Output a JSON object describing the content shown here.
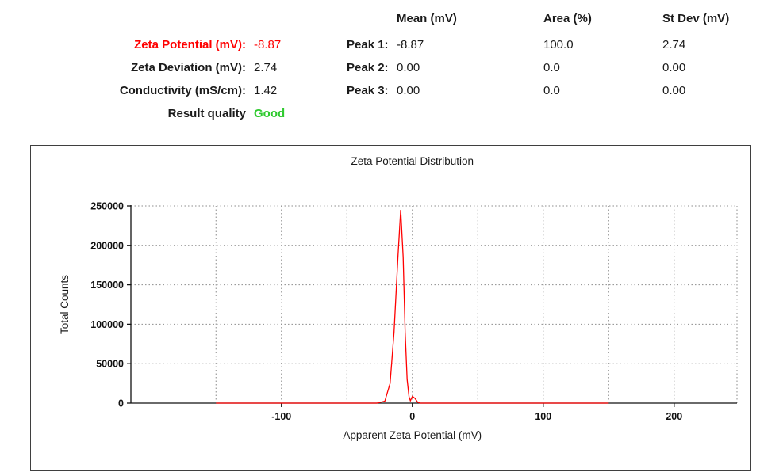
{
  "summary": {
    "rows": [
      {
        "label": "Zeta Potential (mV):",
        "value": "-8.87"
      },
      {
        "label": "Zeta Deviation (mV):",
        "value": "2.74"
      },
      {
        "label": "Conductivity (mS/cm):",
        "value": "1.42"
      },
      {
        "label": "Result quality",
        "value": "Good"
      }
    ],
    "colors": {
      "highlight": "#ff0000",
      "good": "#2fca2f"
    }
  },
  "peaks": {
    "headers": [
      "Mean (mV)",
      "Area (%)",
      "St Dev (mV)"
    ],
    "rows": [
      {
        "label": "Peak 1:",
        "mean": "-8.87",
        "area": "100.0",
        "stdev": "2.74"
      },
      {
        "label": "Peak 2:",
        "mean": "0.00",
        "area": "0.0",
        "stdev": "0.00"
      },
      {
        "label": "Peak 3:",
        "mean": "0.00",
        "area": "0.0",
        "stdev": "0.00"
      }
    ]
  },
  "chart_data": {
    "type": "line",
    "title": "Zeta Potential Distribution",
    "xlabel": "Apparent Zeta Potential (mV)",
    "ylabel": "Total Counts",
    "xlim": [
      -215,
      248
    ],
    "ylim": [
      0,
      250000
    ],
    "x_ticks": [
      -100,
      0,
      100,
      200
    ],
    "y_ticks": [
      0,
      50000,
      100000,
      150000,
      200000,
      250000
    ],
    "grid_x": [
      -150,
      -100,
      -50,
      0,
      50,
      100,
      150,
      200
    ],
    "grid": true,
    "legend": false,
    "line_color": "#ff0000",
    "peak": {
      "x": -8.87,
      "y": 245000
    },
    "series": [
      {
        "name": "Zeta Potential Distribution",
        "points": [
          [
            -150,
            0
          ],
          [
            -27,
            0
          ],
          [
            -21,
            2500
          ],
          [
            -17,
            25000
          ],
          [
            -14,
            90000
          ],
          [
            -11,
            185000
          ],
          [
            -8.87,
            245000
          ],
          [
            -7,
            185000
          ],
          [
            -5.5,
            90000
          ],
          [
            -4,
            30000
          ],
          [
            -2.5,
            8000
          ],
          [
            -1.5,
            3000
          ],
          [
            0,
            8500
          ],
          [
            2,
            6000
          ],
          [
            4,
            1200
          ],
          [
            6,
            0
          ],
          [
            150,
            0
          ]
        ]
      }
    ]
  }
}
